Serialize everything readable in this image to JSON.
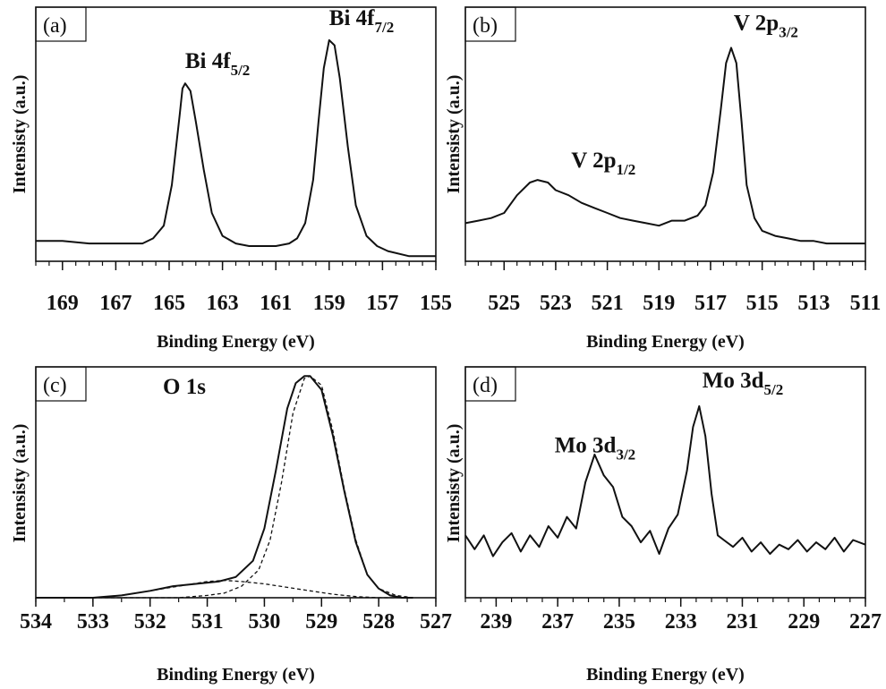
{
  "figure": {
    "background": "#ffffff",
    "line_color": "#111111"
  },
  "chart_data": [
    {
      "panel": "(a)",
      "type": "line",
      "xlabel": "Binding Energy  (eV)",
      "ylabel": "Intensisty (a.u.)",
      "xlim": [
        170,
        155
      ],
      "ylim": [
        0,
        1
      ],
      "grid": false,
      "x_reversed": true,
      "xticks": [
        169,
        167,
        165,
        163,
        161,
        159,
        157,
        155
      ],
      "annotations": [
        {
          "base": "Bi 4f",
          "sub": "5/2",
          "x": 164.4,
          "y": 0.76
        },
        {
          "base": "Bi 4f",
          "sub": "7/2",
          "x": 159.0,
          "y": 0.93
        }
      ],
      "series": [
        {
          "style": "solid",
          "x": [
            170,
            169,
            168,
            167,
            166,
            165.6,
            165.2,
            164.9,
            164.6,
            164.5,
            164.4,
            164.2,
            164.0,
            163.7,
            163.4,
            163.0,
            162.5,
            162,
            161.5,
            161,
            160.5,
            160.2,
            159.9,
            159.6,
            159.4,
            159.2,
            159.0,
            158.8,
            158.6,
            158.3,
            158.0,
            157.6,
            157.2,
            156.8,
            156,
            155
          ],
          "y": [
            0.08,
            0.08,
            0.07,
            0.07,
            0.07,
            0.09,
            0.14,
            0.3,
            0.58,
            0.68,
            0.7,
            0.67,
            0.55,
            0.36,
            0.19,
            0.1,
            0.07,
            0.06,
            0.06,
            0.06,
            0.07,
            0.09,
            0.15,
            0.32,
            0.55,
            0.76,
            0.87,
            0.85,
            0.72,
            0.45,
            0.22,
            0.1,
            0.06,
            0.04,
            0.02,
            0.02
          ]
        }
      ]
    },
    {
      "panel": "(b)",
      "type": "line",
      "xlabel": "Binding Energy  (eV)",
      "ylabel": "Intensisty (a.u.)",
      "xlim": [
        526.5,
        511
      ],
      "ylim": [
        0,
        1
      ],
      "grid": false,
      "x_reversed": true,
      "xticks": [
        525,
        523,
        521,
        519,
        517,
        515,
        513,
        511
      ],
      "annotations": [
        {
          "base": "V 2p",
          "sub": "1/2",
          "x": 522.4,
          "y": 0.37
        },
        {
          "base": "V 2p",
          "sub": "3/2",
          "x": 516.1,
          "y": 0.91
        }
      ],
      "series": [
        {
          "style": "solid",
          "x": [
            526.5,
            526,
            525.5,
            525,
            524.5,
            524,
            523.7,
            523.3,
            523,
            522.5,
            522,
            521.5,
            521,
            520.5,
            520,
            519.5,
            519,
            518.5,
            518,
            517.5,
            517.2,
            516.9,
            516.6,
            516.4,
            516.2,
            516.0,
            515.8,
            515.6,
            515.3,
            515,
            514.5,
            514,
            513.5,
            513,
            512.5,
            512,
            511.5,
            511
          ],
          "y": [
            0.15,
            0.16,
            0.17,
            0.19,
            0.26,
            0.31,
            0.32,
            0.31,
            0.28,
            0.26,
            0.23,
            0.21,
            0.19,
            0.17,
            0.16,
            0.15,
            0.14,
            0.16,
            0.16,
            0.18,
            0.22,
            0.35,
            0.6,
            0.78,
            0.84,
            0.78,
            0.55,
            0.3,
            0.17,
            0.12,
            0.1,
            0.09,
            0.08,
            0.08,
            0.07,
            0.07,
            0.07,
            0.07
          ]
        }
      ]
    },
    {
      "panel": "(c)",
      "type": "line",
      "title": "O 1s",
      "xlabel": "Binding Energy (eV)",
      "ylabel": "Intensisty (a.u.)",
      "xlim": [
        534,
        527
      ],
      "ylim": [
        0,
        1
      ],
      "grid": false,
      "x_reversed": true,
      "xticks": [
        534,
        533,
        532,
        531,
        530,
        529,
        528,
        527
      ],
      "series": [
        {
          "style": "solid",
          "x": [
            534,
            533,
            532.5,
            532,
            531.6,
            531.2,
            530.8,
            530.5,
            530.2,
            530.0,
            529.8,
            529.6,
            529.45,
            529.3,
            529.2,
            529.0,
            528.8,
            528.6,
            528.4,
            528.2,
            528.0,
            527.8,
            527.6,
            527.4
          ],
          "y": [
            0.0,
            0.0,
            0.01,
            0.03,
            0.05,
            0.06,
            0.07,
            0.09,
            0.16,
            0.3,
            0.55,
            0.82,
            0.93,
            0.96,
            0.96,
            0.9,
            0.7,
            0.46,
            0.24,
            0.1,
            0.04,
            0.01,
            0.0,
            0.0
          ]
        },
        {
          "style": "dashed",
          "x": [
            534,
            532,
            531.5,
            531,
            530.7,
            530.4,
            530.1,
            529.9,
            529.7,
            529.5,
            529.3,
            529.2,
            529.0,
            528.8,
            528.6,
            528.4,
            528.2,
            528.0,
            527.7,
            527.4
          ],
          "y": [
            0.0,
            0.0,
            0.0,
            0.01,
            0.02,
            0.05,
            0.12,
            0.25,
            0.5,
            0.8,
            0.95,
            0.96,
            0.92,
            0.72,
            0.47,
            0.25,
            0.1,
            0.04,
            0.01,
            0.0
          ]
        },
        {
          "style": "dashed",
          "x": [
            534,
            533,
            532.5,
            532,
            531.5,
            531,
            530.7,
            530.4,
            530.0,
            529.6,
            529.2,
            528.8,
            528.4,
            528,
            527.6
          ],
          "y": [
            0.0,
            0.0,
            0.01,
            0.03,
            0.05,
            0.07,
            0.075,
            0.07,
            0.06,
            0.045,
            0.03,
            0.015,
            0.005,
            0.0,
            0.0
          ]
        }
      ]
    },
    {
      "panel": "(d)",
      "type": "line",
      "xlabel": "Binding Energy  (eV)",
      "ylabel": "Intensisty (a.u.)",
      "xlim": [
        240,
        227
      ],
      "ylim": [
        0,
        1
      ],
      "grid": false,
      "x_reversed": true,
      "xticks": [
        239,
        237,
        235,
        233,
        231,
        229,
        227
      ],
      "annotations": [
        {
          "base": "Mo 3d",
          "sub": "3/2",
          "x": 237.1,
          "y": 0.63
        },
        {
          "base": "Mo 3d",
          "sub": "5/2",
          "x": 232.3,
          "y": 0.91
        }
      ],
      "series": [
        {
          "style": "solid",
          "x": [
            240,
            239.7,
            239.4,
            239.1,
            238.8,
            238.5,
            238.2,
            237.9,
            237.6,
            237.3,
            237.0,
            236.7,
            236.4,
            236.1,
            235.8,
            235.5,
            235.2,
            234.9,
            234.6,
            234.3,
            234.0,
            233.7,
            233.4,
            233.1,
            232.8,
            232.6,
            232.4,
            232.2,
            232.0,
            231.8,
            231.6,
            231.3,
            231.0,
            230.7,
            230.4,
            230.1,
            229.8,
            229.5,
            229.2,
            228.9,
            228.6,
            228.3,
            228.0,
            227.7,
            227.4,
            227.0
          ],
          "y": [
            0.27,
            0.21,
            0.27,
            0.18,
            0.24,
            0.28,
            0.2,
            0.27,
            0.22,
            0.31,
            0.26,
            0.35,
            0.3,
            0.5,
            0.62,
            0.53,
            0.48,
            0.35,
            0.31,
            0.24,
            0.29,
            0.19,
            0.3,
            0.36,
            0.55,
            0.74,
            0.83,
            0.7,
            0.45,
            0.27,
            0.25,
            0.22,
            0.26,
            0.2,
            0.24,
            0.19,
            0.23,
            0.21,
            0.25,
            0.2,
            0.24,
            0.21,
            0.26,
            0.2,
            0.25,
            0.23
          ]
        }
      ]
    }
  ]
}
